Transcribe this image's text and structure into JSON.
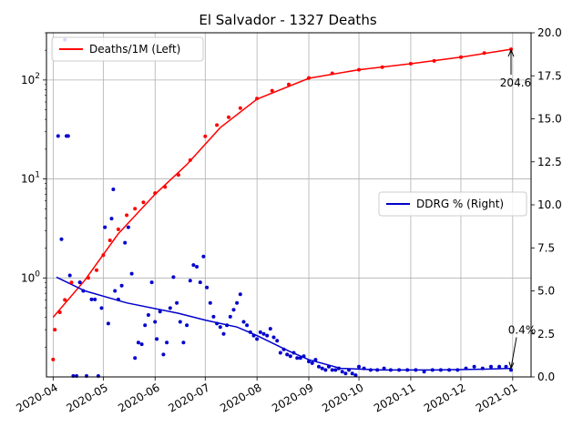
{
  "chart_data": {
    "type": "line",
    "title": "El Salvador - 1327 Deaths",
    "x_ticks": [
      "2020-04",
      "2020-05",
      "2020-06",
      "2020-07",
      "2020-08",
      "2020-09",
      "2020-10",
      "2020-11",
      "2020-12",
      "2021-01"
    ],
    "x_range": [
      "2020-03-28",
      "2021-01-12"
    ],
    "left_axis": {
      "scale": "log",
      "range": [
        0.1,
        300
      ],
      "ticks": [
        "10^0",
        "10^1",
        "10^2"
      ]
    },
    "right_axis": {
      "scale": "linear",
      "range": [
        0,
        20
      ],
      "ticks": [
        "0.0",
        "2.5",
        "5.0",
        "7.5",
        "10.0",
        "12.5",
        "15.0",
        "17.5",
        "20.0"
      ]
    },
    "grid": true,
    "legends": [
      {
        "label": "Deaths/1M (Left)",
        "color": "#ff0000",
        "placement": "upper-left"
      },
      {
        "label": "DDRG % (Right)",
        "color": "#0000cc",
        "placement": "center-right"
      }
    ],
    "annotations": [
      {
        "text": "204.6",
        "series": "Deaths/1M (Left)",
        "date": "2020-12-31",
        "value": 204.6
      },
      {
        "text": "0.4%",
        "series": "DDRG % (Right)",
        "date": "2020-12-31",
        "value": 0.4
      }
    ],
    "series": [
      {
        "name": "Deaths/1M (Left)",
        "axis": "left",
        "color": "#ff0000",
        "points": [
          [
            "2020-04-01",
            0.15
          ],
          [
            "2020-04-02",
            0.3
          ],
          [
            "2020-04-05",
            0.45
          ],
          [
            "2020-04-08",
            0.6
          ],
          [
            "2020-04-12",
            0.9
          ],
          [
            "2020-04-17",
            0.9
          ],
          [
            "2020-04-22",
            1.0
          ],
          [
            "2020-04-27",
            1.2
          ],
          [
            "2020-05-01",
            1.7
          ],
          [
            "2020-05-05",
            2.4
          ],
          [
            "2020-05-10",
            3.1
          ],
          [
            "2020-05-15",
            4.3
          ],
          [
            "2020-05-20",
            5.0
          ],
          [
            "2020-05-25",
            5.8
          ],
          [
            "2020-06-01",
            7.2
          ],
          [
            "2020-06-07",
            8.3
          ],
          [
            "2020-06-15",
            11.0
          ],
          [
            "2020-06-22",
            15.5
          ],
          [
            "2020-07-01",
            27.0
          ],
          [
            "2020-07-08",
            35.0
          ],
          [
            "2020-07-15",
            42.0
          ],
          [
            "2020-07-22",
            52.0
          ],
          [
            "2020-08-01",
            65.0
          ],
          [
            "2020-08-10",
            78.0
          ],
          [
            "2020-08-20",
            90.0
          ],
          [
            "2020-09-01",
            105.0
          ],
          [
            "2020-09-15",
            117.0
          ],
          [
            "2020-10-01",
            127.0
          ],
          [
            "2020-10-15",
            135.0
          ],
          [
            "2020-11-01",
            146.0
          ],
          [
            "2020-11-15",
            156.0
          ],
          [
            "2020-12-01",
            170.0
          ],
          [
            "2020-12-15",
            187.0
          ],
          [
            "2020-12-31",
            204.6
          ]
        ],
        "trend": [
          [
            "2020-04-01",
            0.4
          ],
          [
            "2020-04-20",
            0.95
          ],
          [
            "2020-05-10",
            2.8
          ],
          [
            "2020-06-01",
            7.0
          ],
          [
            "2020-06-20",
            14.0
          ],
          [
            "2020-07-10",
            33.0
          ],
          [
            "2020-08-01",
            64.0
          ],
          [
            "2020-09-01",
            104.0
          ],
          [
            "2020-10-01",
            127.0
          ],
          [
            "2020-11-01",
            146.0
          ],
          [
            "2020-12-01",
            170.0
          ],
          [
            "2020-12-31",
            204.6
          ]
        ]
      },
      {
        "name": "DDRG % (Right)",
        "axis": "right",
        "color": "#0000cc",
        "points": [
          [
            "2020-04-04",
            14.0
          ],
          [
            "2020-04-06",
            8.0
          ],
          [
            "2020-04-08",
            19.6
          ],
          [
            "2020-04-09",
            14.0
          ],
          [
            "2020-04-10",
            14.0
          ],
          [
            "2020-04-11",
            5.9
          ],
          [
            "2020-04-13",
            0.0
          ],
          [
            "2020-04-15",
            0.0
          ],
          [
            "2020-04-17",
            5.5
          ],
          [
            "2020-04-19",
            5.0
          ],
          [
            "2020-04-21",
            0.0
          ],
          [
            "2020-04-24",
            4.5
          ],
          [
            "2020-04-26",
            4.5
          ],
          [
            "2020-04-28",
            0.0
          ],
          [
            "2020-04-30",
            4.0
          ],
          [
            "2020-05-02",
            8.7
          ],
          [
            "2020-05-04",
            3.1
          ],
          [
            "2020-05-06",
            9.2
          ],
          [
            "2020-05-07",
            10.9
          ],
          [
            "2020-05-08",
            5.0
          ],
          [
            "2020-05-10",
            4.5
          ],
          [
            "2020-05-12",
            5.3
          ],
          [
            "2020-05-14",
            7.8
          ],
          [
            "2020-05-16",
            8.7
          ],
          [
            "2020-05-18",
            6.0
          ],
          [
            "2020-05-20",
            1.1
          ],
          [
            "2020-05-22",
            2.0
          ],
          [
            "2020-05-24",
            1.9
          ],
          [
            "2020-05-26",
            3.0
          ],
          [
            "2020-05-28",
            3.6
          ],
          [
            "2020-05-30",
            5.5
          ],
          [
            "2020-06-01",
            3.2
          ],
          [
            "2020-06-02",
            2.2
          ],
          [
            "2020-06-04",
            3.8
          ],
          [
            "2020-06-06",
            1.3
          ],
          [
            "2020-06-08",
            2.0
          ],
          [
            "2020-06-10",
            4.0
          ],
          [
            "2020-06-12",
            5.8
          ],
          [
            "2020-06-14",
            4.3
          ],
          [
            "2020-06-16",
            3.2
          ],
          [
            "2020-06-18",
            2.0
          ],
          [
            "2020-06-20",
            3.0
          ],
          [
            "2020-06-22",
            5.6
          ],
          [
            "2020-06-24",
            6.5
          ],
          [
            "2020-06-26",
            6.4
          ],
          [
            "2020-06-28",
            5.5
          ],
          [
            "2020-06-30",
            7.0
          ],
          [
            "2020-07-02",
            5.2
          ],
          [
            "2020-07-04",
            4.3
          ],
          [
            "2020-07-06",
            3.5
          ],
          [
            "2020-07-08",
            3.1
          ],
          [
            "2020-07-10",
            2.9
          ],
          [
            "2020-07-12",
            2.5
          ],
          [
            "2020-07-14",
            3.0
          ],
          [
            "2020-07-16",
            3.5
          ],
          [
            "2020-07-18",
            3.9
          ],
          [
            "2020-07-20",
            4.3
          ],
          [
            "2020-07-22",
            4.8
          ],
          [
            "2020-07-24",
            3.2
          ],
          [
            "2020-07-26",
            3.0
          ],
          [
            "2020-07-28",
            2.6
          ],
          [
            "2020-07-30",
            2.4
          ],
          [
            "2020-08-01",
            2.2
          ],
          [
            "2020-08-03",
            2.6
          ],
          [
            "2020-08-05",
            2.5
          ],
          [
            "2020-08-07",
            2.4
          ],
          [
            "2020-08-09",
            2.8
          ],
          [
            "2020-08-11",
            2.3
          ],
          [
            "2020-08-13",
            2.1
          ],
          [
            "2020-08-15",
            1.4
          ],
          [
            "2020-08-17",
            1.6
          ],
          [
            "2020-08-19",
            1.3
          ],
          [
            "2020-08-21",
            1.2
          ],
          [
            "2020-08-23",
            1.4
          ],
          [
            "2020-08-25",
            1.1
          ],
          [
            "2020-08-27",
            1.1
          ],
          [
            "2020-08-29",
            1.2
          ],
          [
            "2020-09-01",
            0.9
          ],
          [
            "2020-09-03",
            0.8
          ],
          [
            "2020-09-05",
            1.0
          ],
          [
            "2020-09-07",
            0.6
          ],
          [
            "2020-09-09",
            0.5
          ],
          [
            "2020-09-11",
            0.4
          ],
          [
            "2020-09-13",
            0.6
          ],
          [
            "2020-09-15",
            0.4
          ],
          [
            "2020-09-17",
            0.4
          ],
          [
            "2020-09-19",
            0.5
          ],
          [
            "2020-09-21",
            0.3
          ],
          [
            "2020-09-23",
            0.2
          ],
          [
            "2020-09-25",
            0.4
          ],
          [
            "2020-09-27",
            0.2
          ],
          [
            "2020-09-29",
            0.1
          ],
          [
            "2020-10-01",
            0.6
          ],
          [
            "2020-10-04",
            0.5
          ],
          [
            "2020-10-08",
            0.4
          ],
          [
            "2020-10-12",
            0.4
          ],
          [
            "2020-10-16",
            0.5
          ],
          [
            "2020-10-20",
            0.4
          ],
          [
            "2020-10-25",
            0.4
          ],
          [
            "2020-10-30",
            0.4
          ],
          [
            "2020-11-04",
            0.4
          ],
          [
            "2020-11-09",
            0.3
          ],
          [
            "2020-11-14",
            0.4
          ],
          [
            "2020-11-19",
            0.4
          ],
          [
            "2020-11-24",
            0.4
          ],
          [
            "2020-11-29",
            0.4
          ],
          [
            "2020-12-04",
            0.5
          ],
          [
            "2020-12-09",
            0.6
          ],
          [
            "2020-12-14",
            0.5
          ],
          [
            "2020-12-19",
            0.6
          ],
          [
            "2020-12-24",
            0.6
          ],
          [
            "2020-12-28",
            0.6
          ],
          [
            "2020-12-31",
            0.4
          ]
        ],
        "trend": [
          [
            "2020-04-03",
            5.8
          ],
          [
            "2020-04-20",
            5.0
          ],
          [
            "2020-05-15",
            4.3
          ],
          [
            "2020-06-15",
            3.7
          ],
          [
            "2020-07-01",
            3.3
          ],
          [
            "2020-07-20",
            2.9
          ],
          [
            "2020-08-01",
            2.4
          ],
          [
            "2020-08-20",
            1.5
          ],
          [
            "2020-09-01",
            1.0
          ],
          [
            "2020-09-20",
            0.5
          ],
          [
            "2020-10-15",
            0.4
          ],
          [
            "2020-11-15",
            0.4
          ],
          [
            "2020-12-15",
            0.45
          ],
          [
            "2020-12-31",
            0.5
          ]
        ]
      }
    ]
  }
}
